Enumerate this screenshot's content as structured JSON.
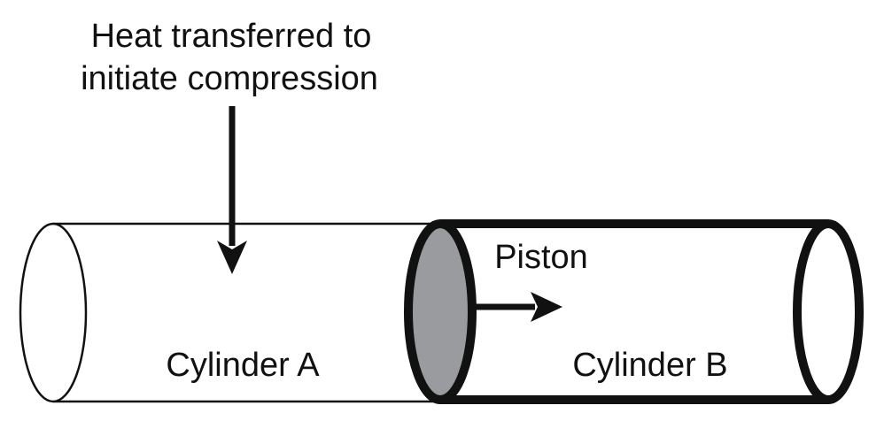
{
  "labels": {
    "heat_line1": "Heat transferred to",
    "heat_line2": "initiate compression",
    "piston": "Piston",
    "cylinder_a": "Cylinder A",
    "cylinder_b": "Cylinder B"
  },
  "colors": {
    "stroke": "#111111",
    "piston_fill": "#9a9b9f",
    "background": "#ffffff"
  }
}
